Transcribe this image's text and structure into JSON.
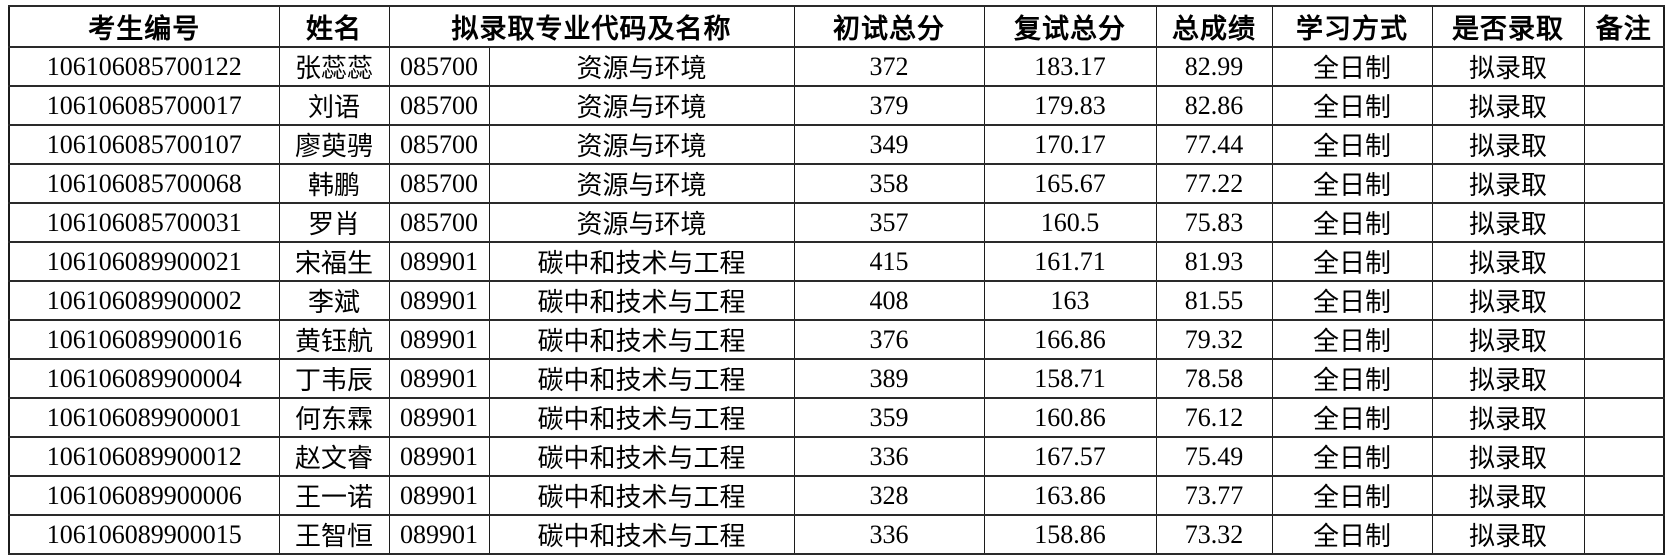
{
  "table": {
    "headers": {
      "candidate_id": "考生编号",
      "name": "姓名",
      "major": "拟录取专业代码及名称",
      "initial_total": "初试总分",
      "retest_total": "复试总分",
      "total_score": "总成绩",
      "study_mode": "学习方式",
      "admitted": "是否录取",
      "remark": "备注"
    },
    "rows": [
      {
        "candidate_id": "106106085700122",
        "name": "张蕊蕊",
        "major_code": "085700",
        "major_name": "资源与环境",
        "initial_total": "372",
        "retest_total": "183.17",
        "total_score": "82.99",
        "study_mode": "全日制",
        "admitted": "拟录取",
        "remark": ""
      },
      {
        "candidate_id": "106106085700017",
        "name": "刘语",
        "major_code": "085700",
        "major_name": "资源与环境",
        "initial_total": "379",
        "retest_total": "179.83",
        "total_score": "82.86",
        "study_mode": "全日制",
        "admitted": "拟录取",
        "remark": ""
      },
      {
        "candidate_id": "106106085700107",
        "name": "廖萸骋",
        "major_code": "085700",
        "major_name": "资源与环境",
        "initial_total": "349",
        "retest_total": "170.17",
        "total_score": "77.44",
        "study_mode": "全日制",
        "admitted": "拟录取",
        "remark": ""
      },
      {
        "candidate_id": "106106085700068",
        "name": "韩鹏",
        "major_code": "085700",
        "major_name": "资源与环境",
        "initial_total": "358",
        "retest_total": "165.67",
        "total_score": "77.22",
        "study_mode": "全日制",
        "admitted": "拟录取",
        "remark": ""
      },
      {
        "candidate_id": "106106085700031",
        "name": "罗肖",
        "major_code": "085700",
        "major_name": "资源与环境",
        "initial_total": "357",
        "retest_total": "160.5",
        "total_score": "75.83",
        "study_mode": "全日制",
        "admitted": "拟录取",
        "remark": ""
      },
      {
        "candidate_id": "106106089900021",
        "name": "宋福生",
        "major_code": "089901",
        "major_name": "碳中和技术与工程",
        "initial_total": "415",
        "retest_total": "161.71",
        "total_score": "81.93",
        "study_mode": "全日制",
        "admitted": "拟录取",
        "remark": ""
      },
      {
        "candidate_id": "106106089900002",
        "name": "李斌",
        "major_code": "089901",
        "major_name": "碳中和技术与工程",
        "initial_total": "408",
        "retest_total": "163",
        "total_score": "81.55",
        "study_mode": "全日制",
        "admitted": "拟录取",
        "remark": ""
      },
      {
        "candidate_id": "106106089900016",
        "name": "黄钰航",
        "major_code": "089901",
        "major_name": "碳中和技术与工程",
        "initial_total": "376",
        "retest_total": "166.86",
        "total_score": "79.32",
        "study_mode": "全日制",
        "admitted": "拟录取",
        "remark": ""
      },
      {
        "candidate_id": "106106089900004",
        "name": "丁韦辰",
        "major_code": "089901",
        "major_name": "碳中和技术与工程",
        "initial_total": "389",
        "retest_total": "158.71",
        "total_score": "78.58",
        "study_mode": "全日制",
        "admitted": "拟录取",
        "remark": ""
      },
      {
        "candidate_id": "106106089900001",
        "name": "何东霖",
        "major_code": "089901",
        "major_name": "碳中和技术与工程",
        "initial_total": "359",
        "retest_total": "160.86",
        "total_score": "76.12",
        "study_mode": "全日制",
        "admitted": "拟录取",
        "remark": ""
      },
      {
        "candidate_id": "106106089900012",
        "name": "赵文睿",
        "major_code": "089901",
        "major_name": "碳中和技术与工程",
        "initial_total": "336",
        "retest_total": "167.57",
        "total_score": "75.49",
        "study_mode": "全日制",
        "admitted": "拟录取",
        "remark": ""
      },
      {
        "candidate_id": "106106089900006",
        "name": "王一诺",
        "major_code": "089901",
        "major_name": "碳中和技术与工程",
        "initial_total": "328",
        "retest_total": "163.86",
        "total_score": "73.77",
        "study_mode": "全日制",
        "admitted": "拟录取",
        "remark": ""
      },
      {
        "candidate_id": "106106089900015",
        "name": "王智恒",
        "major_code": "089901",
        "major_name": "碳中和技术与工程",
        "initial_total": "336",
        "retest_total": "158.86",
        "total_score": "73.32",
        "study_mode": "全日制",
        "admitted": "拟录取",
        "remark": ""
      }
    ]
  }
}
